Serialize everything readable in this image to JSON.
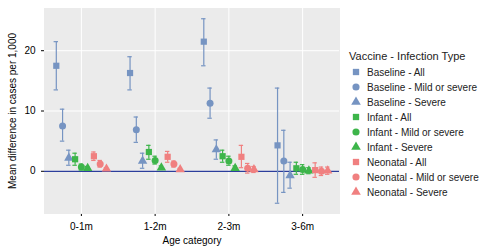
{
  "chart_data": {
    "type": "scatter",
    "x_label": "Age category",
    "y_label": "Mean difference in cases per 1,000",
    "legend_title": "Vaccine - Infection Type",
    "categories": [
      "0-1m",
      "1-2m",
      "2-3m",
      "3-6m"
    ],
    "ylim": [
      -7,
      27
    ],
    "yticks": [
      0,
      10,
      20
    ],
    "grid": true,
    "legend": "right",
    "reference_line": 0,
    "series": [
      {
        "name": "Baseline - All",
        "color": "#7694c2",
        "marker": "square",
        "values": [
          17.5,
          16.3,
          21.5,
          4.3
        ],
        "error_low": [
          13.5,
          13.5,
          17.5,
          -5.3
        ],
        "error_high": [
          21.5,
          19.0,
          25.3,
          13.8
        ]
      },
      {
        "name": "Baseline - Mild or severe",
        "color": "#7694c2",
        "marker": "circle",
        "values": [
          7.5,
          6.9,
          11.3,
          1.7
        ],
        "error_low": [
          5.0,
          4.8,
          8.8,
          -3.5
        ],
        "error_high": [
          10.3,
          9.0,
          13.8,
          6.8
        ]
      },
      {
        "name": "Baseline - Severe",
        "color": "#7694c2",
        "marker": "triangle",
        "values": [
          2.2,
          1.7,
          3.6,
          -0.7
        ],
        "error_low": [
          1.0,
          0.5,
          2.0,
          -2.8
        ],
        "error_high": [
          3.5,
          3.0,
          5.2,
          1.5
        ]
      },
      {
        "name": "Infant - All",
        "color": "#3db54a",
        "marker": "square",
        "values": [
          2.0,
          3.2,
          2.5,
          0.5
        ],
        "error_low": [
          1.0,
          2.0,
          1.5,
          -0.5
        ],
        "error_high": [
          3.0,
          4.3,
          3.5,
          1.5
        ]
      },
      {
        "name": "Infant - Mild or severe",
        "color": "#3db54a",
        "marker": "circle",
        "values": [
          0.7,
          1.8,
          1.7,
          0.3
        ],
        "error_low": [
          0.2,
          1.2,
          1.0,
          -0.5
        ],
        "error_high": [
          1.2,
          2.5,
          2.5,
          1.1
        ]
      },
      {
        "name": "Infant - Severe",
        "color": "#3db54a",
        "marker": "triangle",
        "values": [
          0.5,
          0.6,
          0.5,
          0.1
        ],
        "error_low": [
          0.2,
          0.3,
          0.2,
          -0.4
        ],
        "error_high": [
          0.8,
          0.9,
          0.9,
          0.6
        ]
      },
      {
        "name": "Neonatal - All",
        "color": "#f08080",
        "marker": "square",
        "values": [
          2.5,
          2.4,
          2.4,
          0.2
        ],
        "error_low": [
          1.8,
          1.5,
          0.6,
          -1.0
        ],
        "error_high": [
          3.2,
          3.3,
          4.3,
          1.4
        ]
      },
      {
        "name": "Neonatal - Mild or severe",
        "color": "#f08080",
        "marker": "circle",
        "values": [
          1.2,
          1.2,
          0.5,
          0.0
        ],
        "error_low": [
          0.7,
          0.7,
          -0.3,
          -0.7
        ],
        "error_high": [
          1.8,
          1.7,
          1.3,
          0.7
        ]
      },
      {
        "name": "Neonatal - Severe",
        "color": "#f08080",
        "marker": "triangle",
        "values": [
          0.4,
          0.3,
          0.3,
          0.1
        ],
        "error_low": [
          0.2,
          0.1,
          -0.2,
          -0.5
        ],
        "error_high": [
          0.6,
          0.5,
          0.8,
          0.7
        ]
      }
    ]
  }
}
